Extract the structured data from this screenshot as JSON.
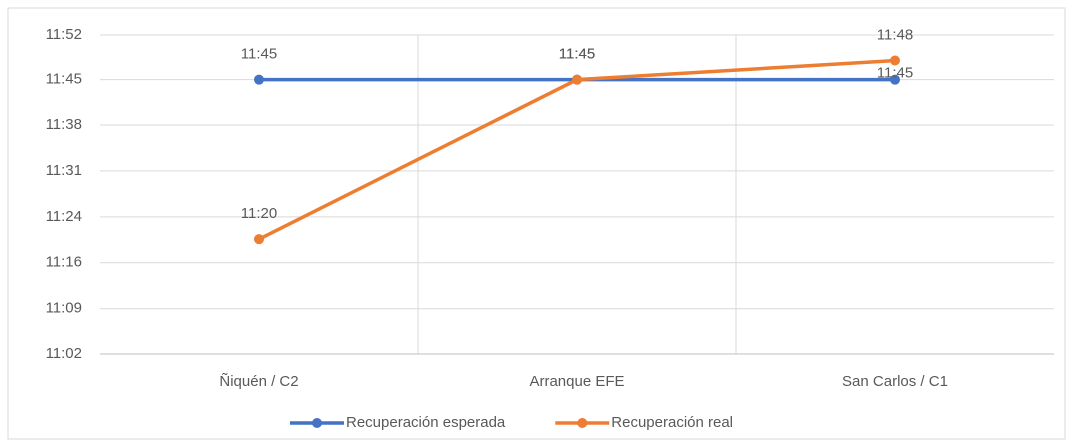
{
  "chart_data": {
    "type": "line",
    "categories": [
      "Ñiquén / C2",
      "Arranque EFE",
      "San Carlos / C1"
    ],
    "series": [
      {
        "name": "Recuperación esperada",
        "color": "#4472c4",
        "values": [
          705,
          705,
          705
        ],
        "value_labels": [
          "11:45",
          "11:45",
          "11:45"
        ]
      },
      {
        "name": "Recuperación real",
        "color": "#ed7d31",
        "values": [
          680,
          705,
          708
        ],
        "value_labels": [
          "11:20",
          "11:45",
          "11:48"
        ]
      }
    ],
    "ylim": [
      662,
      712
    ],
    "yticks": [
      {
        "value": 662,
        "label": "11:02"
      },
      {
        "value": 669.1,
        "label": "11:09"
      },
      {
        "value": 676.3,
        "label": "11:16"
      },
      {
        "value": 683.5,
        "label": "11:24"
      },
      {
        "value": 690.7,
        "label": "11:31"
      },
      {
        "value": 697.9,
        "label": "11:38"
      },
      {
        "value": 705,
        "label": "11:45"
      },
      {
        "value": 712,
        "label": "11:52"
      }
    ],
    "grid": true,
    "legend": "bottom"
  }
}
